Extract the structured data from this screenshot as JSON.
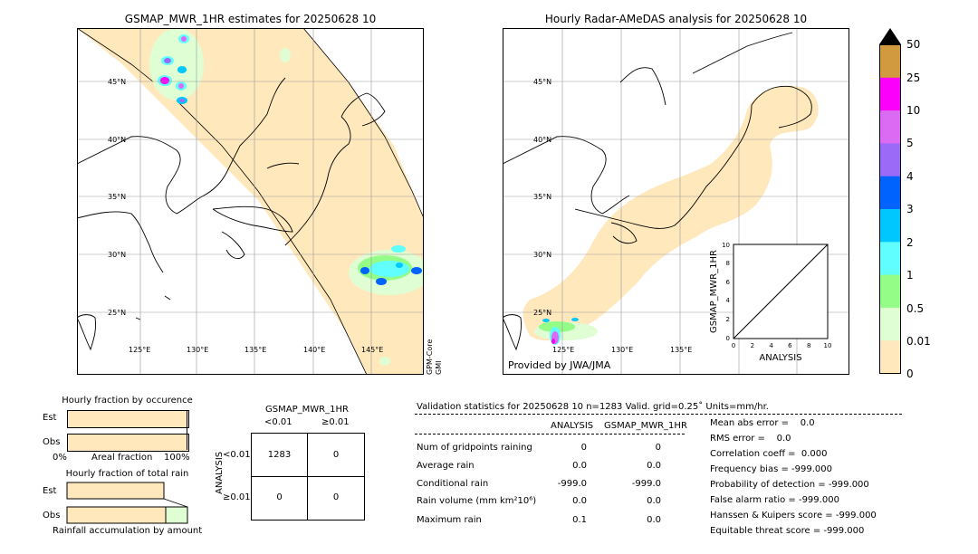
{
  "left_map": {
    "title": "GSMAP_MWR_1HR estimates for 20250628 10",
    "lat_labels": [
      "45°N",
      "40°N",
      "35°N",
      "30°N",
      "25°N"
    ],
    "lon_labels": [
      "125°E",
      "130°E",
      "135°E",
      "140°E",
      "145°E"
    ],
    "side_label_1": "GPM-Core",
    "side_label_2": "GMI"
  },
  "right_map": {
    "title": "Hourly Radar-AMeDAS analysis for 20250628 10",
    "lat_labels": [
      "45°N",
      "40°N",
      "35°N",
      "30°N",
      "25°N"
    ],
    "lon_labels": [
      "125°E",
      "130°E",
      "135°E"
    ],
    "provided_by": "Provided by JWA/JMA"
  },
  "colorbar": {
    "labels": [
      "50",
      "25",
      "10",
      "5",
      "4",
      "3",
      "2",
      "1",
      "0.5",
      "0.01",
      "0"
    ],
    "colors": [
      "#d19a3f",
      "#fb00fb",
      "#db6bf3",
      "#9b6bf8",
      "#0063fe",
      "#00c7fe",
      "#60fefe",
      "#94fd87",
      "#dffed3",
      "#ffe8bc"
    ],
    "over_color": "#000000"
  },
  "scatter_inset": {
    "ylabel": "GSMAP_MWR_1HR",
    "xlabel": "ANALYSIS",
    "ticks": [
      "0",
      "2",
      "4",
      "6",
      "8",
      "10"
    ]
  },
  "fraction_occurrence": {
    "title": "Hourly fraction by occurence",
    "row_est": "Est",
    "row_obs": "Obs",
    "axis_left": "0%",
    "axis_mid": "Areal fraction",
    "axis_right": "100%"
  },
  "fraction_total": {
    "title": "Hourly fraction of total rain",
    "row_est": "Est",
    "row_obs": "Obs",
    "caption": "Rainfall accumulation by amount"
  },
  "contingency": {
    "title": "GSMAP_MWR_1HR",
    "col_lt": "<0.01",
    "col_ge": "≥0.01",
    "row_axis": "ANALYSIS",
    "row_lt": "<0.01",
    "row_ge": "≥0.01",
    "cells": [
      "1283",
      "0",
      "0",
      "0"
    ]
  },
  "validation": {
    "header": "Validation statistics for 20250628 10  n=1283 Valid. grid=0.25˚ Units=mm/hr.",
    "col_analysis": "ANALYSIS",
    "col_gsmap": "GSMAP_MWR_1HR",
    "rows": [
      {
        "label": "Num of gridpoints raining",
        "analysis": "0",
        "gsmap": "0"
      },
      {
        "label": "Average rain",
        "analysis": "0.0",
        "gsmap": "0.0"
      },
      {
        "label": "Conditional rain",
        "analysis": "-999.0",
        "gsmap": "-999.0"
      },
      {
        "label": "Rain volume (mm km²10⁶)",
        "analysis": "0.0",
        "gsmap": "0.0"
      },
      {
        "label": "Maximum rain",
        "analysis": "0.1",
        "gsmap": "0.0"
      }
    ],
    "scores": [
      "Mean abs error =    0.0",
      "RMS error =    0.0",
      "Correlation coeff =  0.000",
      "Frequency bias = -999.000",
      "Probability of detection = -999.000",
      "False alarm ratio = -999.000",
      "Hanssen & Kuipers score = -999.000",
      "Equitable threat score = -999.000"
    ]
  },
  "chart_data": [
    {
      "type": "heatmap",
      "title": "GSMAP_MWR_1HR estimates for 20250628 10",
      "xlabel": "",
      "ylabel": "",
      "x_ticks": [
        "125°E",
        "130°E",
        "135°E",
        "140°E",
        "145°E"
      ],
      "y_ticks": [
        "45°N",
        "40°N",
        "35°N",
        "30°N",
        "25°N"
      ]
    },
    {
      "type": "heatmap",
      "title": "Hourly Radar-AMeDAS analysis for 20250628 10",
      "x_ticks": [
        "125°E",
        "130°E",
        "135°E"
      ],
      "y_ticks": [
        "45°N",
        "40°N",
        "35°N",
        "30°N",
        "25°N"
      ]
    },
    {
      "type": "scatter",
      "xlabel": "ANALYSIS",
      "ylabel": "GSMAP_MWR_1HR",
      "xlim": [
        0,
        10
      ],
      "ylim": [
        0,
        10
      ],
      "x": [],
      "y": []
    },
    {
      "type": "table",
      "title": "GSMAP_MWR_1HR",
      "columns": [
        "<0.01",
        "≥0.01"
      ],
      "rows": [
        "<0.01",
        "≥0.01"
      ],
      "values": [
        [
          1283,
          0
        ],
        [
          0,
          0
        ]
      ]
    }
  ]
}
